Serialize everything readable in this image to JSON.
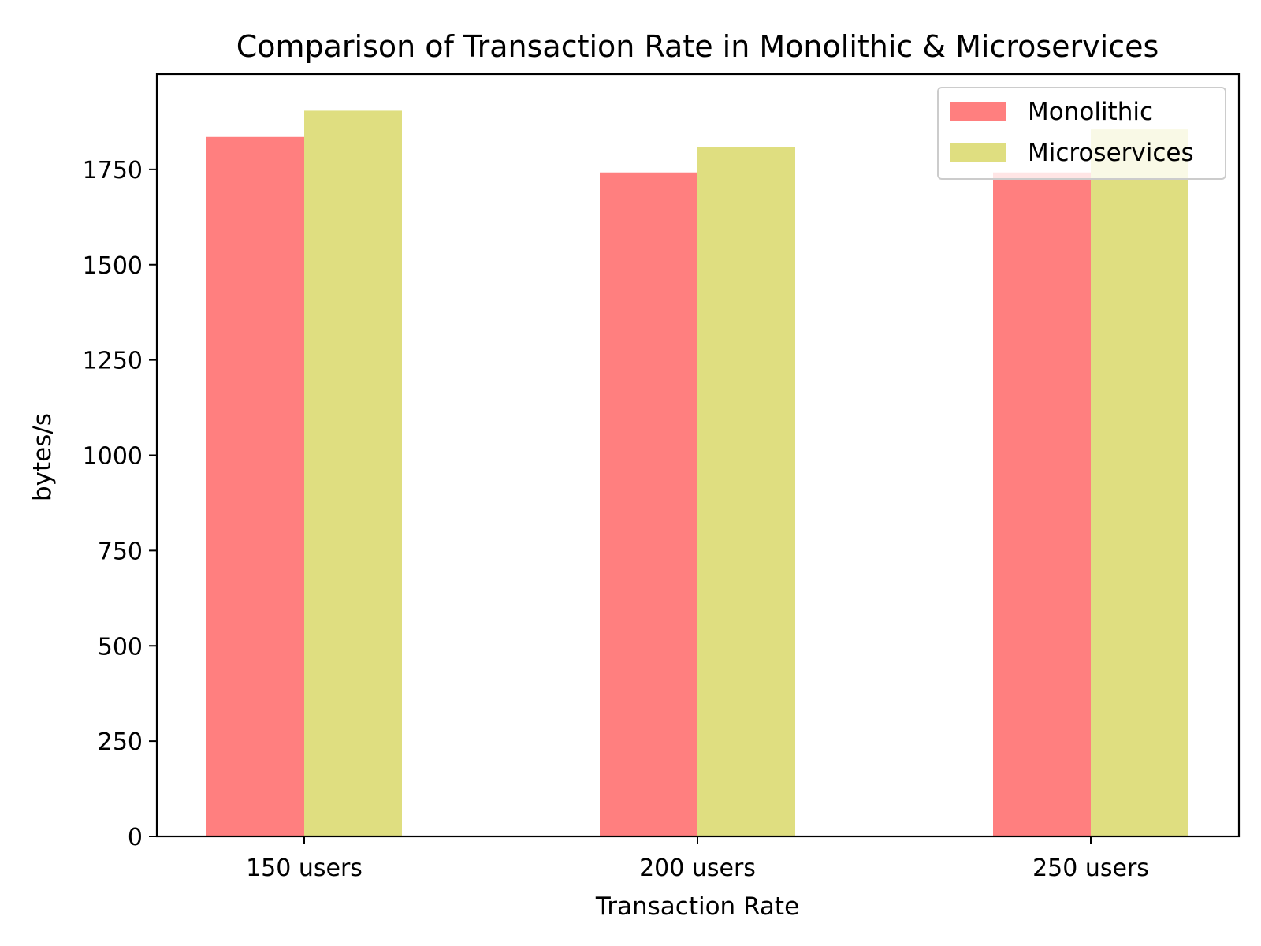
{
  "chart_data": {
    "type": "bar",
    "title": "Comparison of Transaction Rate in Monolithic & Microservices",
    "xlabel": "Transaction Rate",
    "ylabel": "bytes/s",
    "categories": [
      "150 users",
      "200 users",
      "250 users"
    ],
    "series": [
      {
        "name": "Monolithic",
        "values": [
          1835,
          1742,
          1742
        ],
        "color": "#ff7f7f"
      },
      {
        "name": "Microservices",
        "values": [
          1904,
          1808,
          1855
        ],
        "color": "#dfde80"
      }
    ],
    "ylim": [
      0,
      2000
    ],
    "yticks": [
      0,
      250,
      500,
      750,
      1000,
      1250,
      1500,
      1750
    ],
    "ytick_labels": [
      "0",
      "250",
      "500",
      "750",
      "1000",
      "1250",
      "1500",
      "1750"
    ],
    "grid": false,
    "legend_position": "top-right"
  }
}
